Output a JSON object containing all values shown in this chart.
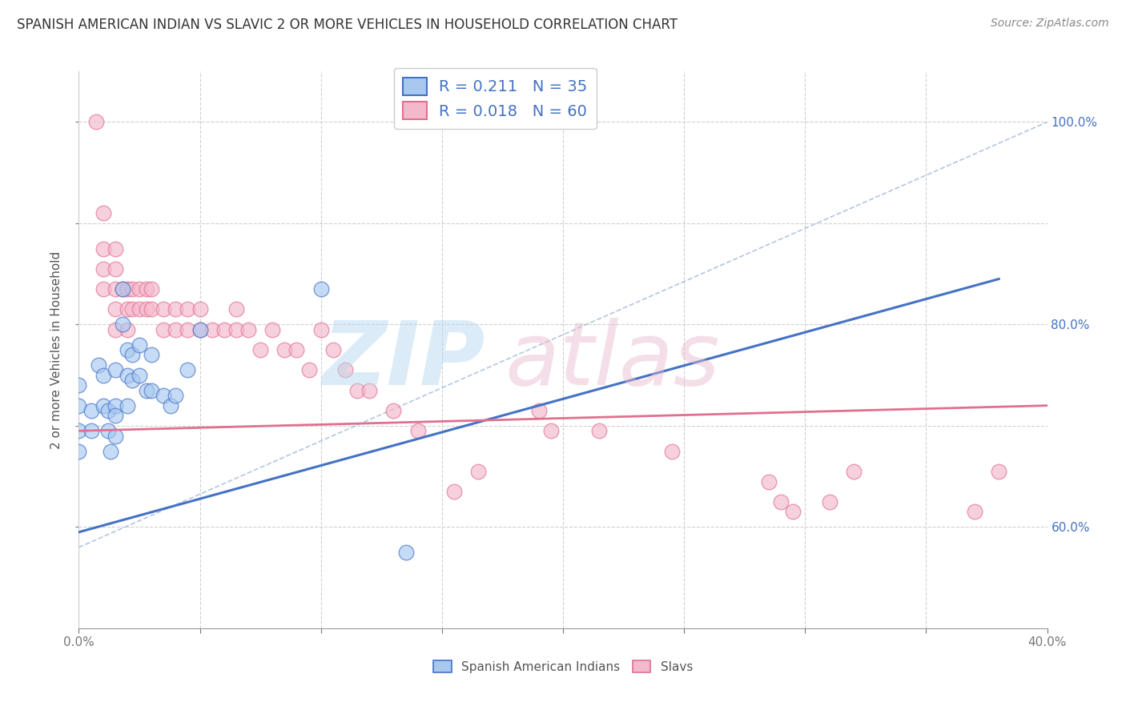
{
  "title": "SPANISH AMERICAN INDIAN VS SLAVIC 2 OR MORE VEHICLES IN HOUSEHOLD CORRELATION CHART",
  "source": "Source: ZipAtlas.com",
  "ylabel": "2 or more Vehicles in Household",
  "legend_label1": "Spanish American Indians",
  "legend_label2": "Slavs",
  "R1": 0.211,
  "N1": 35,
  "R2": 0.018,
  "N2": 60,
  "color1": "#a8c8f0",
  "color2": "#f4b8cc",
  "line1_color": "#4472c4",
  "line2_color": "#e07090",
  "diag_color": "#a0b8d8",
  "xlim": [
    0.0,
    0.4
  ],
  "ylim": [
    0.5,
    1.05
  ],
  "blue_line_x": [
    0.0,
    0.38
  ],
  "blue_line_y": [
    0.595,
    0.845
  ],
  "pink_line_x": [
    0.0,
    0.4
  ],
  "pink_line_y": [
    0.695,
    0.72
  ],
  "diag_line_x": [
    0.0,
    0.4
  ],
  "diag_line_y": [
    0.58,
    1.0
  ],
  "blue_points_x": [
    0.0,
    0.0,
    0.0,
    0.0,
    0.005,
    0.005,
    0.008,
    0.01,
    0.01,
    0.012,
    0.012,
    0.013,
    0.015,
    0.015,
    0.015,
    0.015,
    0.018,
    0.018,
    0.02,
    0.02,
    0.02,
    0.022,
    0.022,
    0.025,
    0.025,
    0.028,
    0.03,
    0.03,
    0.035,
    0.038,
    0.04,
    0.045,
    0.05,
    0.1,
    0.135
  ],
  "blue_points_y": [
    0.74,
    0.72,
    0.695,
    0.675,
    0.715,
    0.695,
    0.76,
    0.75,
    0.72,
    0.715,
    0.695,
    0.675,
    0.755,
    0.72,
    0.71,
    0.69,
    0.835,
    0.8,
    0.775,
    0.75,
    0.72,
    0.77,
    0.745,
    0.78,
    0.75,
    0.735,
    0.77,
    0.735,
    0.73,
    0.72,
    0.73,
    0.755,
    0.795,
    0.835,
    0.575
  ],
  "pink_points_x": [
    0.007,
    0.01,
    0.01,
    0.01,
    0.01,
    0.015,
    0.015,
    0.015,
    0.015,
    0.015,
    0.018,
    0.02,
    0.02,
    0.02,
    0.022,
    0.022,
    0.025,
    0.025,
    0.028,
    0.028,
    0.03,
    0.03,
    0.035,
    0.035,
    0.04,
    0.04,
    0.045,
    0.045,
    0.05,
    0.05,
    0.055,
    0.06,
    0.065,
    0.065,
    0.07,
    0.075,
    0.08,
    0.085,
    0.09,
    0.095,
    0.1,
    0.105,
    0.11,
    0.115,
    0.12,
    0.13,
    0.14,
    0.155,
    0.165,
    0.19,
    0.195,
    0.215,
    0.245,
    0.285,
    0.29,
    0.295,
    0.31,
    0.32,
    0.37,
    0.38
  ],
  "pink_points_y": [
    1.0,
    0.91,
    0.875,
    0.855,
    0.835,
    0.875,
    0.855,
    0.835,
    0.815,
    0.795,
    0.835,
    0.835,
    0.815,
    0.795,
    0.835,
    0.815,
    0.835,
    0.815,
    0.835,
    0.815,
    0.835,
    0.815,
    0.815,
    0.795,
    0.815,
    0.795,
    0.815,
    0.795,
    0.815,
    0.795,
    0.795,
    0.795,
    0.815,
    0.795,
    0.795,
    0.775,
    0.795,
    0.775,
    0.775,
    0.755,
    0.795,
    0.775,
    0.755,
    0.735,
    0.735,
    0.715,
    0.695,
    0.635,
    0.655,
    0.715,
    0.695,
    0.695,
    0.675,
    0.645,
    0.625,
    0.615,
    0.625,
    0.655,
    0.615,
    0.655
  ]
}
